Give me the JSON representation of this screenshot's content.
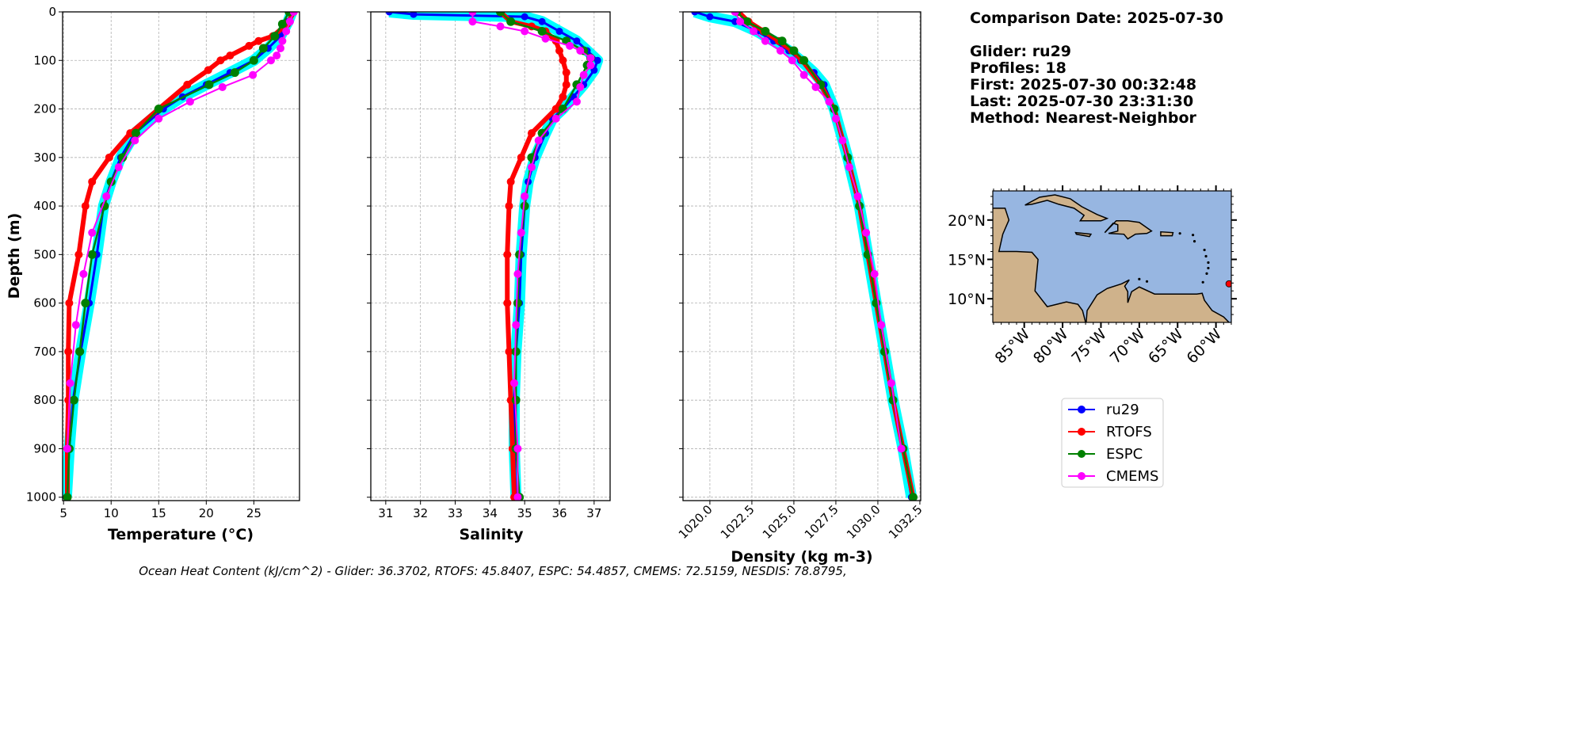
{
  "info": {
    "comparison_date": "Comparison Date: 2025-07-30",
    "glider": "Glider: ru29",
    "profiles": "Profiles: 18",
    "first": "First: 2025-07-30 00:32:48",
    "last": "Last: 2025-07-30 23:31:30",
    "method": "Method: Nearest-Neighbor"
  },
  "footer": "Ocean Heat Content (kJ/cm^2) - Glider: 36.3702,  RTOFS: 45.8407,  ESPC: 54.4857,  CMEMS: 72.5159,  NESDIS: 78.8795,",
  "colors": {
    "ru29": "#0000ff",
    "RTOFS": "#ff0000",
    "ESPC": "#008000",
    "CMEMS": "#ff00ff",
    "glider_profiles": "#00ffff",
    "ocean": "#97b6e1",
    "land": "#cfb28b"
  },
  "legend": [
    "ru29",
    "RTOFS",
    "ESPC",
    "CMEMS"
  ],
  "map": {
    "lon_ticks": [
      "85°W",
      "80°W",
      "75°W",
      "70°W",
      "65°W",
      "60°W"
    ],
    "lon_values": [
      -85,
      -80,
      -75,
      -70,
      -65,
      -60
    ],
    "lat_ticks": [
      "20°N",
      "15°N",
      "10°N"
    ],
    "lat_values": [
      20,
      15,
      10
    ],
    "extent": {
      "lon": [
        -89.1,
        -58.0
      ],
      "lat": [
        7.0,
        23.7
      ]
    },
    "glider_position": {
      "lon": -58.3,
      "lat": 11.9
    }
  },
  "chart_data": [
    {
      "type": "line",
      "xlabel": "Temperature (°C)",
      "ylabel": "Depth (m)",
      "xlim": [
        4.9,
        29.8
      ],
      "ylim": [
        1007,
        0
      ],
      "xticks": [
        5,
        10,
        15,
        20,
        25
      ],
      "xtick_labels": [
        "5",
        "10",
        "15",
        "20",
        "25"
      ],
      "yticks": [
        0,
        100,
        200,
        300,
        400,
        500,
        600,
        700,
        800,
        900,
        1000
      ],
      "ytick_labels": [
        "0",
        "100",
        "200",
        "300",
        "400",
        "500",
        "600",
        "700",
        "800",
        "900",
        "1000"
      ],
      "grid": true,
      "series": [
        {
          "name": "ru29",
          "depth": [
            0,
            20,
            50,
            75,
            100,
            125,
            150,
            175,
            200,
            250,
            300,
            350,
            400,
            500,
            600,
            700,
            800,
            900,
            1000
          ],
          "values": [
            29,
            28.6,
            27.8,
            26.5,
            25,
            22.5,
            20,
            17.5,
            15.5,
            12.5,
            11,
            10,
            9.2,
            8.5,
            7.7,
            6.8,
            6,
            5.6,
            5.3
          ]
        },
        {
          "name": "RTOFS",
          "depth": [
            0,
            25,
            50,
            60,
            70,
            90,
            100,
            120,
            150,
            200,
            250,
            300,
            350,
            400,
            500,
            600,
            700,
            800,
            900,
            1000
          ],
          "values": [
            29.2,
            28.5,
            27,
            25.5,
            24.5,
            22.5,
            21.5,
            20.2,
            18,
            15,
            12,
            9.8,
            8,
            7.3,
            6.6,
            5.6,
            5.5,
            5.5,
            5.4,
            5.4
          ]
        },
        {
          "name": "ESPC",
          "depth": [
            0,
            25,
            50,
            75,
            100,
            125,
            150,
            200,
            250,
            300,
            350,
            400,
            500,
            600,
            700,
            800,
            900,
            1000
          ],
          "values": [
            28.7,
            28,
            27.2,
            26,
            25,
            23,
            20.3,
            15,
            12.6,
            11.2,
            10,
            9.3,
            8,
            7.3,
            6.7,
            6.1,
            5.6,
            5.4
          ]
        },
        {
          "name": "CMEMS",
          "depth": [
            0,
            20,
            40,
            60,
            75,
            90,
            100,
            130,
            155,
            185,
            220,
            265,
            320,
            380,
            455,
            540,
            645,
            765,
            900
          ],
          "values": [
            29.2,
            28.8,
            28.4,
            28,
            27.8,
            27.4,
            26.8,
            24.9,
            21.7,
            18.3,
            15,
            12.5,
            10.8,
            9.5,
            8,
            7.1,
            6.3,
            5.7,
            5.4
          ]
        }
      ]
    },
    {
      "type": "line",
      "xlabel": "Salinity",
      "xlim": [
        30.57,
        37.46
      ],
      "ylim": [
        1007,
        0
      ],
      "xticks": [
        31,
        32,
        33,
        34,
        35,
        36,
        37
      ],
      "xtick_labels": [
        "31",
        "32",
        "33",
        "34",
        "35",
        "36",
        "37"
      ],
      "grid": true,
      "series": [
        {
          "name": "ru29",
          "depth": [
            0,
            5,
            10,
            20,
            40,
            60,
            80,
            100,
            120,
            150,
            175,
            200,
            220,
            250,
            300,
            350,
            400,
            500,
            600,
            700,
            800,
            900,
            1000
          ],
          "values": [
            31.1,
            31.8,
            35,
            35.5,
            36,
            36.5,
            36.8,
            37.1,
            37,
            36.7,
            36.4,
            36.1,
            35.8,
            35.6,
            35.3,
            35.1,
            35,
            34.9,
            34.85,
            34.75,
            34.7,
            34.7,
            34.75
          ]
        },
        {
          "name": "RTOFS",
          "depth": [
            0,
            20,
            30,
            40,
            60,
            80,
            100,
            125,
            150,
            175,
            200,
            250,
            300,
            350,
            400,
            500,
            600,
            700,
            800,
            900,
            1000
          ],
          "values": [
            34.3,
            34.6,
            35.2,
            35.6,
            35.9,
            36,
            36.1,
            36.2,
            36.2,
            36.1,
            35.9,
            35.2,
            34.9,
            34.6,
            34.55,
            34.5,
            34.5,
            34.55,
            34.6,
            34.65,
            34.7
          ]
        },
        {
          "name": "ESPC",
          "depth": [
            0,
            20,
            40,
            60,
            80,
            95,
            110,
            150,
            200,
            250,
            300,
            400,
            500,
            600,
            700,
            800,
            900,
            1000
          ],
          "values": [
            34.3,
            34.6,
            35.5,
            36.2,
            36.7,
            36.9,
            36.8,
            36.5,
            36.1,
            35.5,
            35.2,
            35,
            34.85,
            34.8,
            34.75,
            34.75,
            34.75,
            34.85
          ]
        },
        {
          "name": "CMEMS",
          "depth": [
            0,
            20,
            30,
            40,
            55,
            70,
            80,
            95,
            110,
            130,
            155,
            185,
            220,
            265,
            320,
            380,
            455,
            540,
            645,
            765,
            900,
            1000
          ],
          "values": [
            33.5,
            33.5,
            34.3,
            35,
            35.6,
            36.3,
            36.6,
            36.9,
            36.9,
            36.7,
            36.6,
            36.5,
            35.9,
            35.4,
            35.2,
            35,
            34.9,
            34.8,
            34.75,
            34.7,
            34.8,
            34.8
          ]
        }
      ]
    },
    {
      "type": "line",
      "xlabel": "Density (kg m-3)",
      "xlim": [
        1018.4,
        1032.55
      ],
      "ylim": [
        1007,
        0
      ],
      "xticks": [
        1020,
        1022.5,
        1025,
        1027.5,
        1030,
        1032.5
      ],
      "xtick_labels": [
        "1020.0",
        "1022.5",
        "1025.0",
        "1027.5",
        "1030.0",
        "1032.5"
      ],
      "grid": true,
      "series": [
        {
          "name": "ru29",
          "depth": [
            0,
            10,
            20,
            40,
            60,
            80,
            100,
            125,
            150,
            200,
            300,
            400,
            500,
            600,
            700,
            800,
            900,
            1000
          ],
          "values": [
            1019.1,
            1020,
            1021.5,
            1022.8,
            1023.8,
            1024.7,
            1025.4,
            1026.2,
            1026.8,
            1027.4,
            1028.2,
            1028.9,
            1029.4,
            1029.9,
            1030.4,
            1030.9,
            1031.5,
            1032.0
          ]
        },
        {
          "name": "RTOFS",
          "depth": [
            0,
            20,
            40,
            60,
            80,
            100,
            150,
            200,
            300,
            400,
            500,
            600,
            700,
            800,
            900,
            1000
          ],
          "values": [
            1021.7,
            1022.3,
            1023.2,
            1024.1,
            1024.9,
            1025.5,
            1026.6,
            1027.4,
            1028.2,
            1028.9,
            1029.4,
            1029.9,
            1030.4,
            1030.9,
            1031.5,
            1032.1
          ]
        },
        {
          "name": "ESPC",
          "depth": [
            0,
            20,
            40,
            60,
            80,
            100,
            150,
            200,
            300,
            400,
            500,
            600,
            700,
            800,
            900,
            1000
          ],
          "values": [
            1021.6,
            1022.2,
            1023.3,
            1024.3,
            1025,
            1025.6,
            1026.6,
            1027.4,
            1028.2,
            1028.9,
            1029.4,
            1029.9,
            1030.4,
            1030.9,
            1031.5,
            1032.1
          ]
        },
        {
          "name": "CMEMS",
          "depth": [
            0,
            20,
            40,
            60,
            80,
            100,
            130,
            155,
            185,
            220,
            265,
            320,
            380,
            455,
            540,
            645,
            765,
            900
          ],
          "values": [
            1021.5,
            1021.8,
            1022.6,
            1023.3,
            1024.2,
            1024.9,
            1025.6,
            1026.3,
            1027.1,
            1027.5,
            1027.9,
            1028.3,
            1028.8,
            1029.3,
            1029.8,
            1030.2,
            1030.8,
            1031.4
          ]
        }
      ]
    }
  ]
}
